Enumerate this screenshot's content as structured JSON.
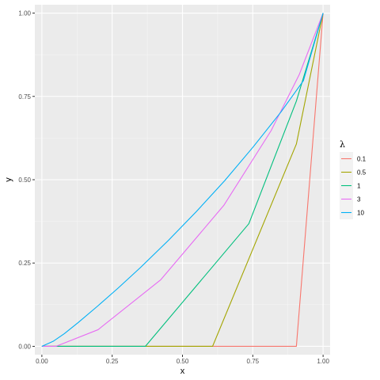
{
  "chart_data": {
    "type": "line",
    "title": "",
    "xlabel": "x",
    "ylabel": "y",
    "xlim": [
      -0.025,
      1.025
    ],
    "ylim": [
      -0.025,
      1.025
    ],
    "x_ticks": [
      0.0,
      0.25,
      0.5,
      0.75,
      1.0
    ],
    "x_tick_labels": [
      "0.00",
      "0.25",
      "0.50",
      "0.75",
      "1.00"
    ],
    "y_ticks": [
      0.0,
      0.25,
      0.5,
      0.75,
      1.0
    ],
    "y_tick_labels": [
      "0.00",
      "0.25",
      "0.50",
      "0.75",
      "1.00"
    ],
    "grid": true,
    "legend": {
      "title": "λ",
      "position": "right"
    },
    "series": [
      {
        "name": "0.1",
        "color": "#F8766D",
        "x": [
          0,
          0.905,
          1.0
        ],
        "y": [
          0,
          0,
          1.0
        ]
      },
      {
        "name": "0.5",
        "color": "#A3A500",
        "x": [
          0,
          0.607,
          0.905,
          1.0
        ],
        "y": [
          0,
          0,
          0.607,
          1.0
        ]
      },
      {
        "name": "1",
        "color": "#00BF7D",
        "x": [
          0,
          0.368,
          0.736,
          0.905,
          1.0
        ],
        "y": [
          0,
          0,
          0.368,
          0.736,
          1.0
        ]
      },
      {
        "name": "3",
        "color": "#E76BF3",
        "x": [
          0,
          0.05,
          0.2,
          0.423,
          0.647,
          0.815,
          0.915,
          1.0
        ],
        "y": [
          0,
          0,
          0.05,
          0.2,
          0.423,
          0.647,
          0.815,
          1.0
        ]
      },
      {
        "name": "10",
        "color": "#00B0F6",
        "x": [
          0,
          0.04,
          0.08,
          0.13,
          0.2,
          0.27,
          0.35,
          0.45,
          0.55,
          0.65,
          0.75,
          0.85,
          0.93,
          1.0
        ],
        "y": [
          0,
          0.015,
          0.038,
          0.072,
          0.122,
          0.174,
          0.236,
          0.318,
          0.405,
          0.497,
          0.597,
          0.703,
          0.797,
          1.0
        ]
      }
    ]
  }
}
